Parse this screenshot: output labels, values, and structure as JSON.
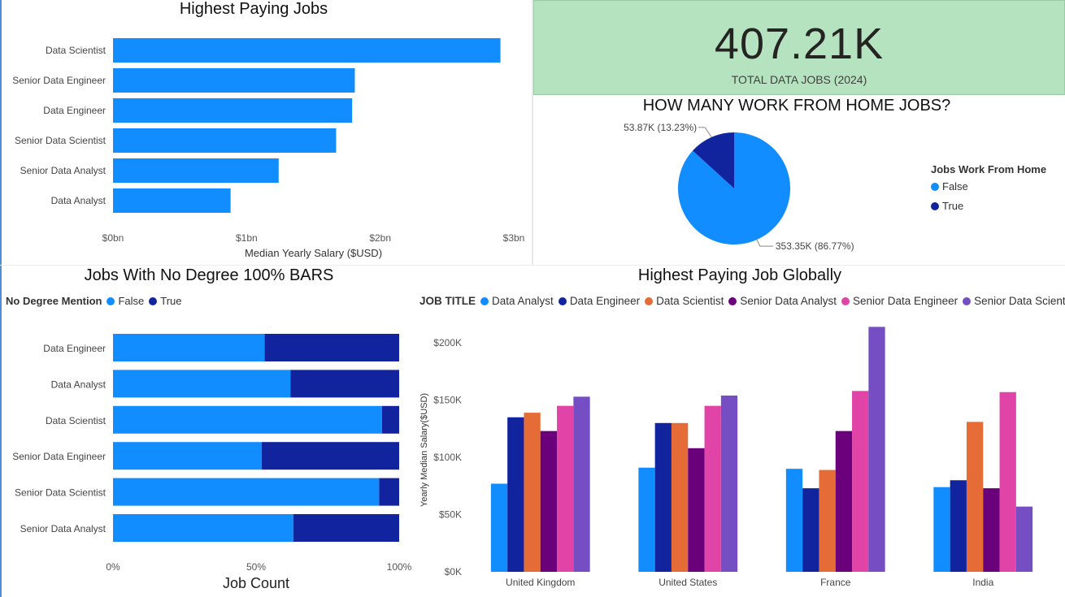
{
  "colors": {
    "primary": "#118DFF",
    "dark": "#12239E",
    "orange": "#E66C37",
    "purple_dark": "#6B007B",
    "pink": "#E044A7",
    "violet": "#744EC2",
    "kpi_bg": "#B6E3BF"
  },
  "chart_data": [
    {
      "type": "bar",
      "orientation": "horizontal",
      "title": "Highest Paying Jobs",
      "categories": [
        "Data Scientist",
        "Senior Data Engineer",
        "Data Engineer",
        "Senior Data Scientist",
        "Senior Data Analyst",
        "Data Analyst"
      ],
      "values": [
        2.9,
        1.81,
        1.79,
        1.67,
        1.24,
        0.88
      ],
      "xlabel": "Median Yearly Salary ($USD)",
      "xlim": [
        0,
        3
      ],
      "xticks": [
        "$0bn",
        "$1bn",
        "$2bn",
        "$3bn"
      ],
      "grid": false
    },
    {
      "type": "kpi",
      "value": "407.21K",
      "label": "TOTAL DATA JOBS (2024)"
    },
    {
      "type": "pie",
      "title": "HOW MANY WORK FROM HOME JOBS?",
      "legend_title": "Jobs Work From Home",
      "legend_position": "right",
      "slices": [
        {
          "name": "False",
          "value": 353.35,
          "label": "353.35K (86.77%)"
        },
        {
          "name": "True",
          "value": 53.87,
          "label": "53.87K (13.23%)"
        }
      ]
    },
    {
      "type": "bar",
      "orientation": "horizontal",
      "stacked": "100%",
      "title": "Jobs With No Degree 100% BARS",
      "legend_title": "No Degree Mention",
      "legend_position": "top-left",
      "categories": [
        "Data Engineer",
        "Data Analyst",
        "Data Scientist",
        "Senior Data Engineer",
        "Senior Data Scientist",
        "Senior Data Analyst"
      ],
      "series": [
        {
          "name": "False",
          "values": [
            53,
            62,
            94,
            52,
            93,
            63
          ]
        },
        {
          "name": "True",
          "values": [
            47,
            38,
            6,
            48,
            7,
            37
          ]
        }
      ],
      "xlabel": "Job Count",
      "xticks": [
        "0%",
        "50%",
        "100%"
      ],
      "xlim": [
        0,
        100
      ]
    },
    {
      "type": "bar",
      "orientation": "vertical",
      "title": "Highest Paying Job Globally",
      "legend_title": "JOB TITLE",
      "legend_position": "top-left",
      "categories": [
        "United Kingdom",
        "United States",
        "France",
        "India"
      ],
      "series": [
        {
          "name": "Data Analyst",
          "values": [
            77,
            91,
            90,
            74
          ]
        },
        {
          "name": "Data Engineer",
          "values": [
            135,
            130,
            73,
            80
          ]
        },
        {
          "name": "Data Scientist",
          "values": [
            139,
            130,
            89,
            131
          ]
        },
        {
          "name": "Senior Data Analyst",
          "values": [
            123,
            108,
            123,
            73
          ]
        },
        {
          "name": "Senior Data Engineer",
          "values": [
            145,
            145,
            158,
            157
          ]
        },
        {
          "name": "Senior Data Scientist",
          "values": [
            153,
            154,
            214,
            57
          ]
        }
      ],
      "ylabel": "Yearly Median Salary($USD)",
      "ylim": [
        0,
        215
      ],
      "yticks": [
        "$0K",
        "$50K",
        "$100K",
        "$150K",
        "$200K"
      ],
      "grid": false
    }
  ]
}
